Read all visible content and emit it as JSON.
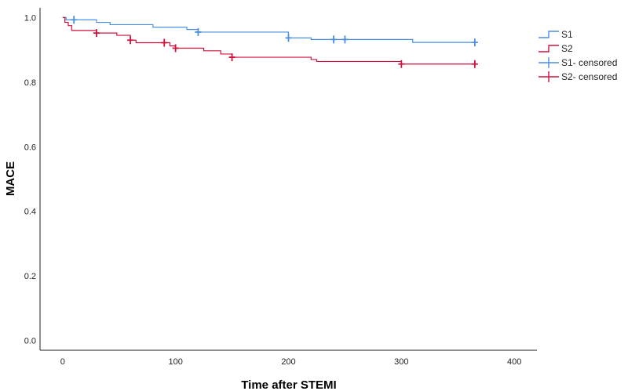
{
  "chart_data": {
    "type": "line",
    "subtype": "kaplan-meier step",
    "title": "",
    "xlabel": "Time after STEMI",
    "ylabel": "MACE",
    "xlim": [
      -20,
      420
    ],
    "ylim": [
      -0.03,
      1.03
    ],
    "x_ticks": [
      0,
      100,
      200,
      300,
      400
    ],
    "x_tick_labels": [
      "0",
      "100",
      "200",
      "300",
      "400"
    ],
    "y_ticks": [
      0.0,
      0.2,
      0.4,
      0.6,
      0.8,
      1.0
    ],
    "y_tick_labels": [
      "0.0",
      "0.2",
      "0.4",
      "0.6",
      "0.8",
      "1.0"
    ],
    "grid": false,
    "legend_position": "top-right",
    "series": [
      {
        "name": "S1",
        "color": "#4a90e2",
        "steps": [
          [
            0,
            1.0
          ],
          [
            3,
            0.993
          ],
          [
            30,
            0.985
          ],
          [
            42,
            0.978
          ],
          [
            80,
            0.97
          ],
          [
            110,
            0.963
          ],
          [
            120,
            0.955
          ],
          [
            200,
            0.937
          ],
          [
            220,
            0.932
          ],
          [
            310,
            0.923
          ],
          [
            365,
            0.923
          ]
        ],
        "censored": [
          10,
          120,
          200,
          240,
          250,
          365
        ]
      },
      {
        "name": "S2",
        "color": "#d0103a",
        "steps": [
          [
            0,
            1.0
          ],
          [
            2,
            0.985
          ],
          [
            5,
            0.975
          ],
          [
            8,
            0.96
          ],
          [
            30,
            0.952
          ],
          [
            48,
            0.945
          ],
          [
            60,
            0.93
          ],
          [
            65,
            0.922
          ],
          [
            95,
            0.912
          ],
          [
            100,
            0.905
          ],
          [
            125,
            0.897
          ],
          [
            140,
            0.887
          ],
          [
            150,
            0.877
          ],
          [
            220,
            0.87
          ],
          [
            225,
            0.864
          ],
          [
            300,
            0.856
          ],
          [
            365,
            0.856
          ]
        ],
        "censored": [
          30,
          60,
          90,
          100,
          150,
          300,
          365
        ]
      }
    ],
    "legend": [
      {
        "label": "S1",
        "kind": "line",
        "color": "#4a90e2"
      },
      {
        "label": "S2",
        "kind": "line",
        "color": "#d0103a"
      },
      {
        "label": "S1- censored",
        "kind": "censor",
        "color": "#4a90e2"
      },
      {
        "label": "S2- censored",
        "kind": "censor",
        "color": "#d0103a"
      }
    ]
  }
}
